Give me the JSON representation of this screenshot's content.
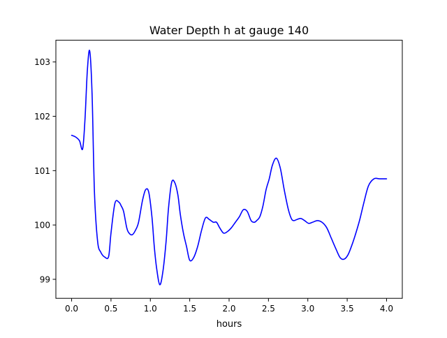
{
  "chart_data": {
    "type": "line",
    "title": "Water Depth h at gauge 140",
    "xlabel": "hours",
    "ylabel": "",
    "xlim": [
      -0.2,
      4.2
    ],
    "ylim": [
      98.65,
      103.4
    ],
    "xticks": [
      0.0,
      0.5,
      1.0,
      1.5,
      2.0,
      2.5,
      3.0,
      3.5,
      4.0
    ],
    "xtick_labels": [
      "0.0",
      "0.5",
      "1.0",
      "1.5",
      "2.0",
      "2.5",
      "3.0",
      "3.5",
      "4.0"
    ],
    "yticks": [
      99,
      100,
      101,
      102,
      103
    ],
    "ytick_labels": [
      "99",
      "100",
      "101",
      "102",
      "103"
    ],
    "grid": false,
    "series": [
      {
        "color": "#0000ff",
        "x": [
          0.0,
          0.05,
          0.1,
          0.14,
          0.17,
          0.2,
          0.23,
          0.26,
          0.29,
          0.33,
          0.37,
          0.42,
          0.47,
          0.5,
          0.55,
          0.6,
          0.63,
          0.66,
          0.7,
          0.73,
          0.77,
          0.81,
          0.85,
          0.9,
          0.94,
          0.98,
          1.02,
          1.05,
          1.08,
          1.12,
          1.16,
          1.2,
          1.23,
          1.27,
          1.31,
          1.35,
          1.38,
          1.42,
          1.46,
          1.5,
          1.55,
          1.6,
          1.65,
          1.7,
          1.75,
          1.8,
          1.84,
          1.88,
          1.93,
          1.98,
          2.03,
          2.08,
          2.13,
          2.18,
          2.23,
          2.28,
          2.32,
          2.35,
          2.39,
          2.43,
          2.47,
          2.51,
          2.55,
          2.6,
          2.65,
          2.7,
          2.75,
          2.79,
          2.82,
          2.86,
          2.91,
          2.96,
          3.01,
          3.06,
          3.12,
          3.18,
          3.24,
          3.3,
          3.36,
          3.41,
          3.46,
          3.51,
          3.56,
          3.61,
          3.66,
          3.71,
          3.77,
          3.84,
          3.91,
          3.97,
          4.0
        ],
        "y": [
          101.65,
          101.62,
          101.55,
          101.4,
          101.95,
          102.85,
          103.2,
          102.4,
          100.6,
          99.7,
          99.5,
          99.41,
          99.42,
          99.85,
          100.4,
          100.42,
          100.35,
          100.25,
          99.95,
          99.85,
          99.82,
          99.9,
          100.05,
          100.45,
          100.65,
          100.6,
          100.15,
          99.6,
          99.2,
          98.9,
          99.15,
          99.7,
          100.3,
          100.78,
          100.78,
          100.55,
          100.2,
          99.85,
          99.6,
          99.35,
          99.4,
          99.6,
          99.9,
          100.13,
          100.1,
          100.05,
          100.05,
          99.95,
          99.85,
          99.88,
          99.95,
          100.05,
          100.15,
          100.28,
          100.25,
          100.08,
          100.05,
          100.08,
          100.15,
          100.35,
          100.65,
          100.85,
          101.1,
          101.23,
          101.05,
          100.65,
          100.3,
          100.12,
          100.08,
          100.1,
          100.12,
          100.08,
          100.03,
          100.05,
          100.08,
          100.05,
          99.95,
          99.75,
          99.55,
          99.4,
          99.37,
          99.45,
          99.63,
          99.85,
          100.1,
          100.4,
          100.72,
          100.85,
          100.85,
          100.85,
          100.85
        ]
      }
    ]
  }
}
